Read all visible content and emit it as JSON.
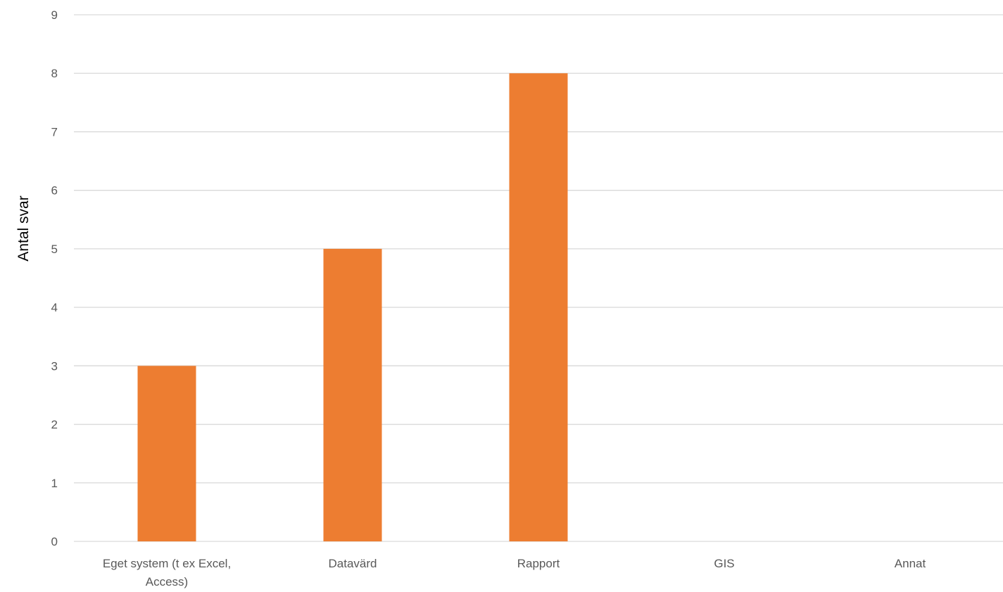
{
  "chart_data": {
    "type": "bar",
    "title": "",
    "xlabel": "",
    "ylabel": "Antal svar",
    "categories": [
      [
        "Eget system (t ex Excel,",
        "Access)"
      ],
      [
        "Datavärd"
      ],
      [
        "Rapport"
      ],
      [
        "GIS"
      ],
      [
        "Annat"
      ]
    ],
    "values": [
      3,
      5,
      8,
      0,
      0
    ],
    "ylim": [
      0,
      9
    ],
    "yticks": [
      0,
      1,
      2,
      3,
      4,
      5,
      6,
      7,
      8,
      9
    ],
    "grid": true,
    "legend": "none",
    "bar_color": "#ed7d31",
    "grid_color": "#d9d9d9"
  }
}
